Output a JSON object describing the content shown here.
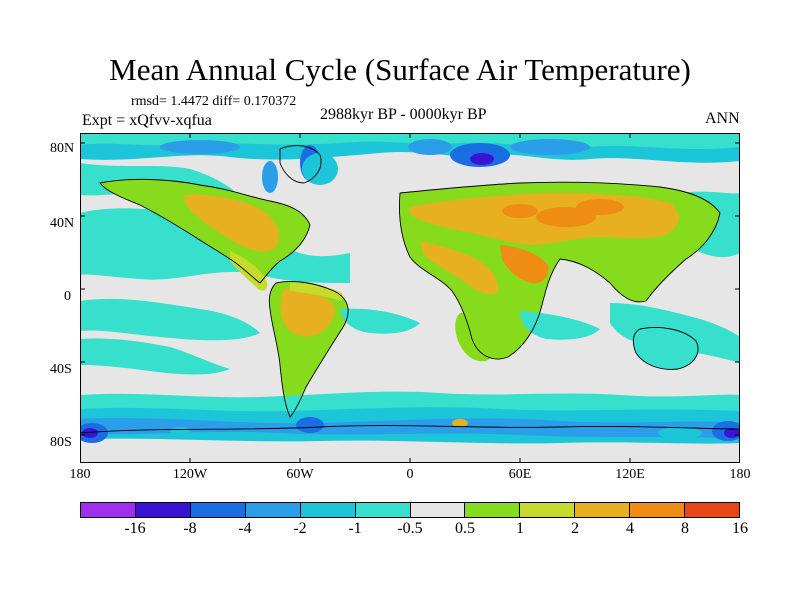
{
  "title": "Mean Annual Cycle (Surface Air Temperature)",
  "stats": "rmsd= 1.4472 diff= 0.170372",
  "experiment": "Expt = xQfvv-xqfua",
  "period": "2988kyr BP - 0000kyr BP",
  "season": "ANN",
  "map": {
    "lat_ticks": [
      "80N",
      "40N",
      "0",
      "40S",
      "80S"
    ],
    "lon_ticks": [
      "180",
      "120W",
      "60W",
      "0",
      "60E",
      "120E",
      "180"
    ]
  },
  "colorbar": {
    "colors": [
      "#9f30f0",
      "#3a14d4",
      "#1a6ee4",
      "#2a9ee8",
      "#1cc6d8",
      "#36e0cc",
      "#e6e6e6",
      "#86dc1c",
      "#c6dc2c",
      "#e6b020",
      "#ee8c14",
      "#e84818"
    ],
    "labels": [
      "-16",
      "-8",
      "-4",
      "-2",
      "-1",
      "-0.5",
      "0.5",
      "1",
      "2",
      "4",
      "8",
      "16"
    ]
  }
}
